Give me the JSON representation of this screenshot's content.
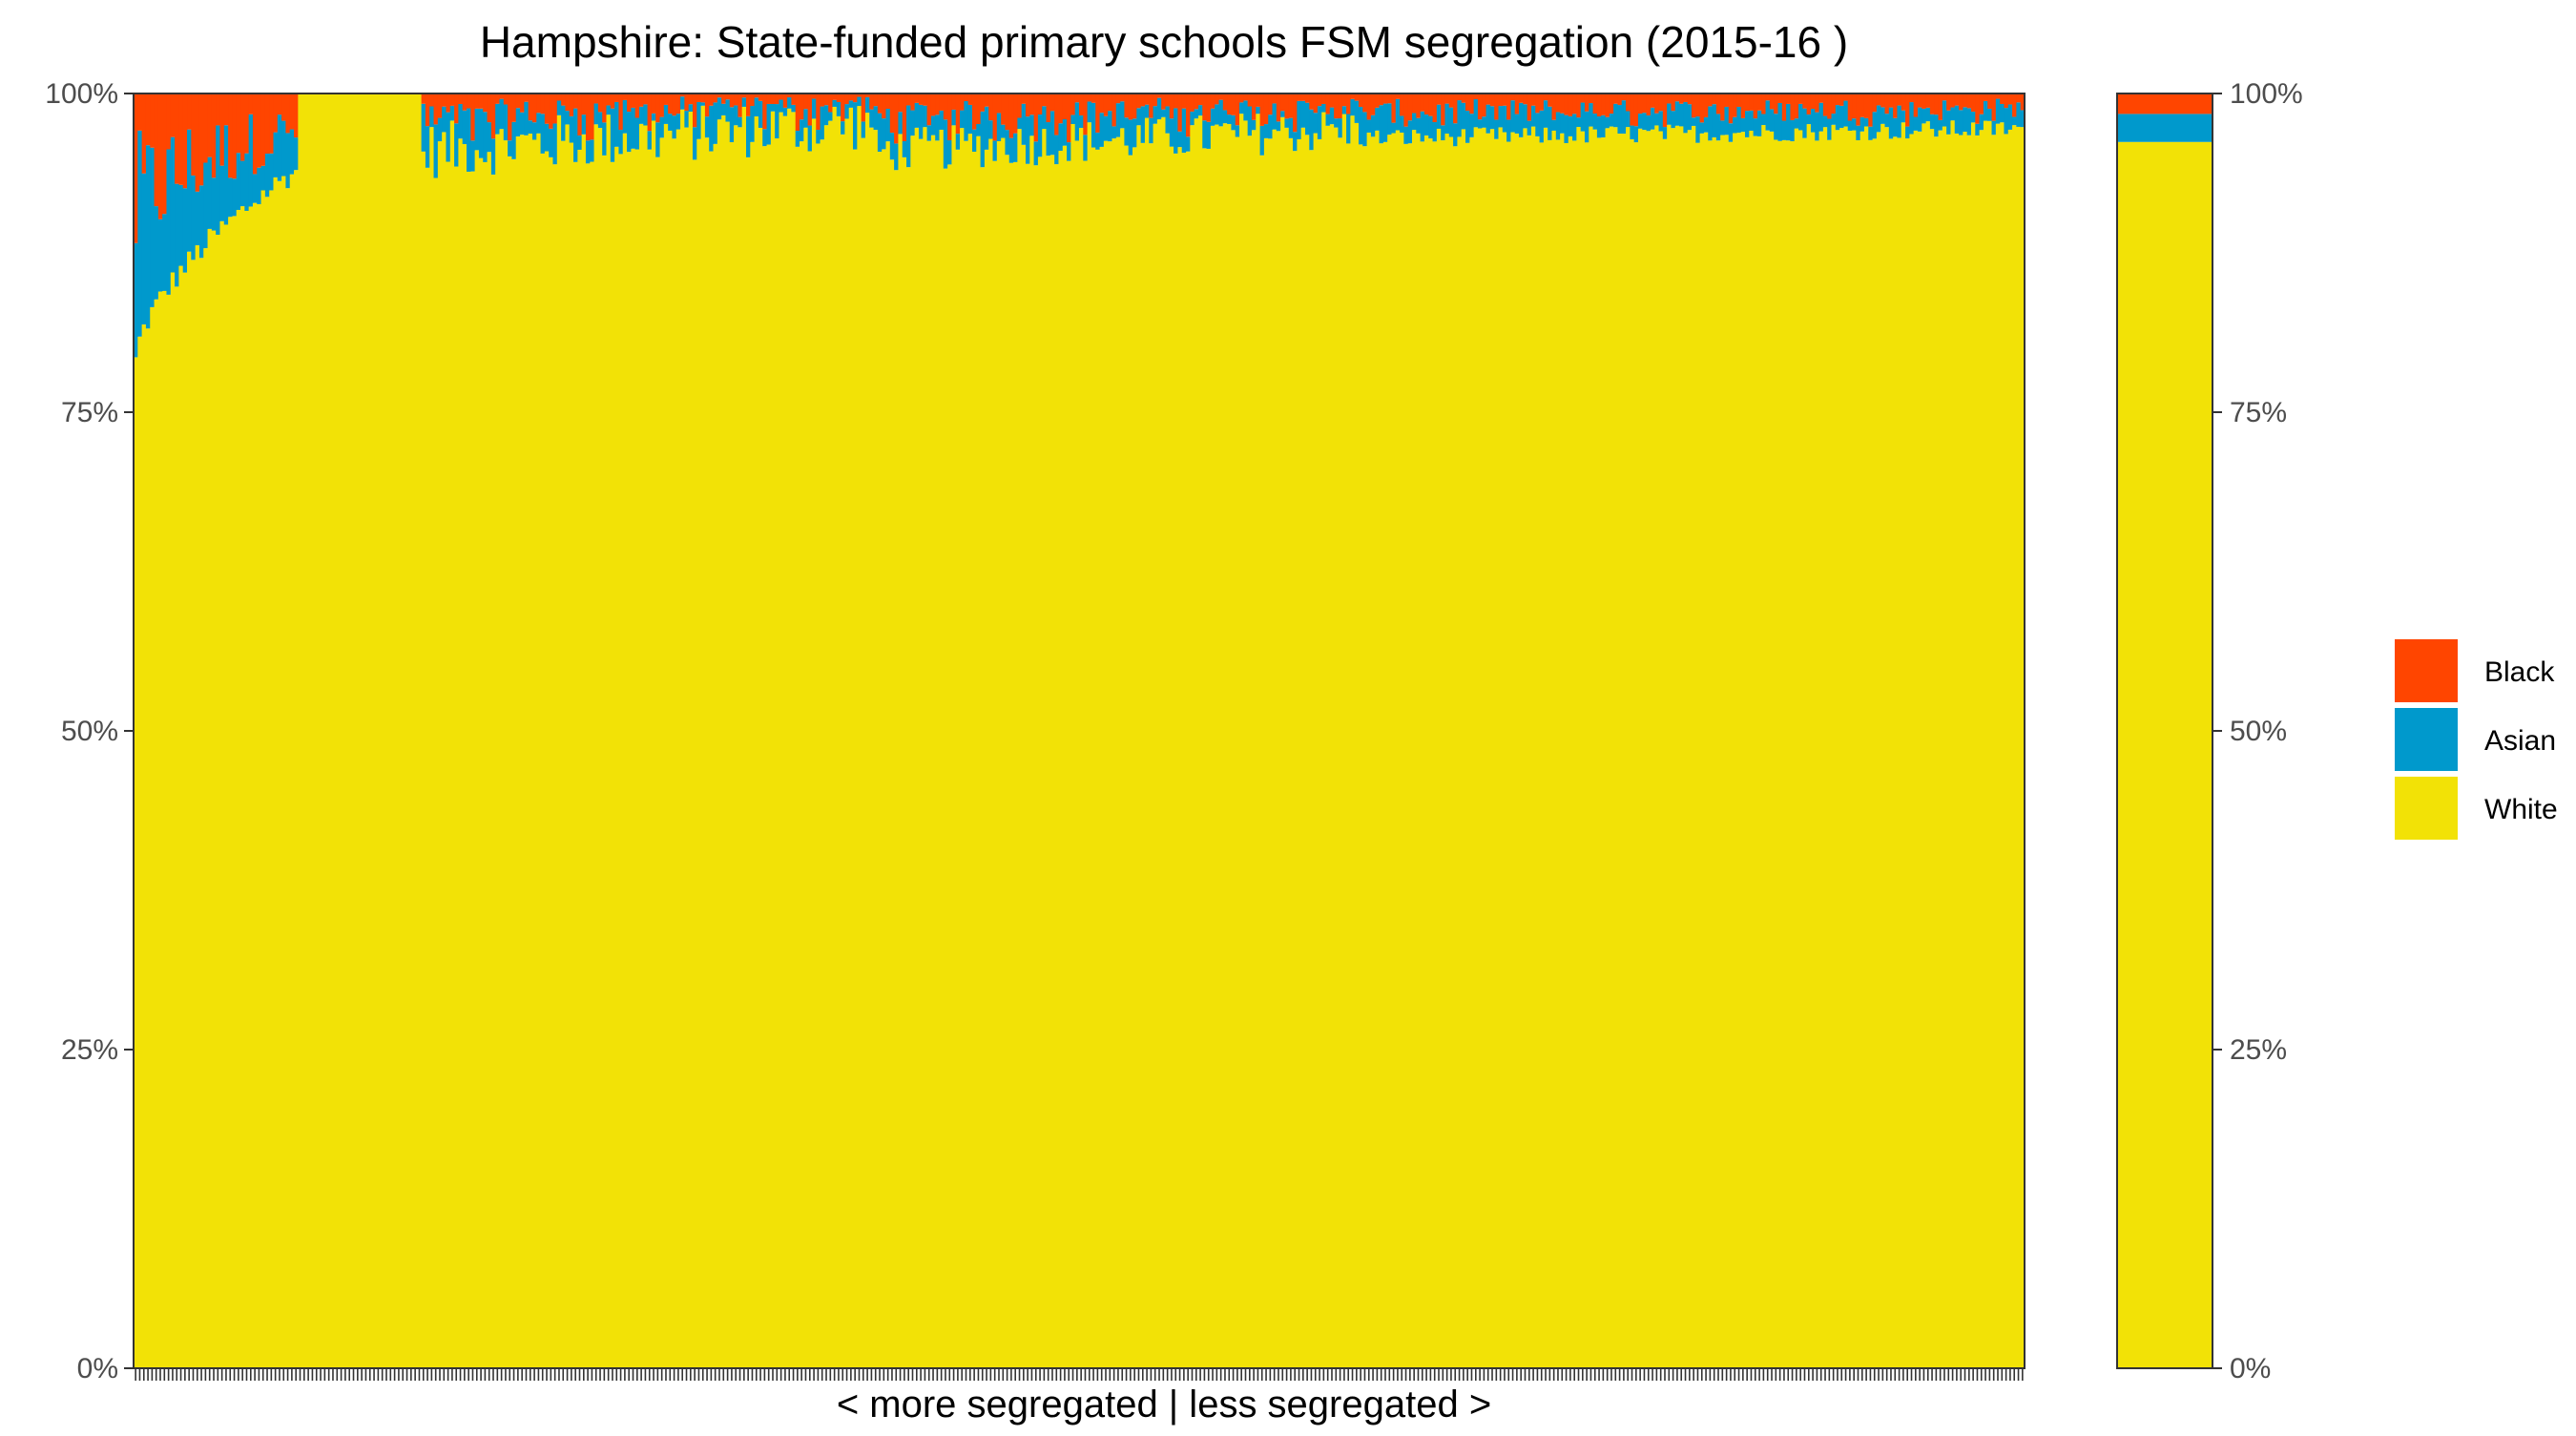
{
  "chart_data": {
    "type": "bar",
    "title": "Hampshire: State-funded primary schools FSM segregation (2015-16 )",
    "xlabel": "< more segregated | less segregated >",
    "ylabel": "",
    "ylim": [
      0,
      100
    ],
    "y_ticks": [
      "0%",
      "25%",
      "50%",
      "75%",
      "100%"
    ],
    "stacking": "percent",
    "n_schools": 460,
    "series": [
      {
        "name": "Black",
        "color": "#FF4500"
      },
      {
        "name": "Asian",
        "color": "#0099CC"
      },
      {
        "name": "White",
        "color": "#F2E206"
      }
    ],
    "school_profile": [
      {
        "from_school": 1,
        "to_school": 40,
        "white_pct": [
          79,
          94
        ],
        "asian_pct": [
          3,
          9
        ],
        "black_pct": [
          1,
          12
        ],
        "note_range": "mixed; white share rises along this run"
      },
      {
        "from_school": 41,
        "to_school": 70,
        "white_pct": [
          100,
          100
        ],
        "asian_pct": [
          0,
          0
        ],
        "black_pct": [
          0,
          0
        ]
      },
      {
        "from_school": 71,
        "to_school": 180,
        "white_pct": [
          91,
          100
        ],
        "asian_pct": [
          0,
          7
        ],
        "black_pct": [
          0,
          5
        ]
      },
      {
        "from_school": 181,
        "to_school": 300,
        "white_pct": [
          92,
          99
        ],
        "asian_pct": [
          0,
          4
        ],
        "black_pct": [
          0,
          3
        ]
      },
      {
        "from_school": 301,
        "to_school": 460,
        "white_pct": [
          95,
          98
        ],
        "asian_pct": [
          1,
          3
        ],
        "black_pct": [
          1,
          2
        ]
      }
    ],
    "overall_bar": {
      "white": 96.2,
      "asian": 2.2,
      "black": 1.6
    },
    "legend_position": "right",
    "grid": false
  }
}
